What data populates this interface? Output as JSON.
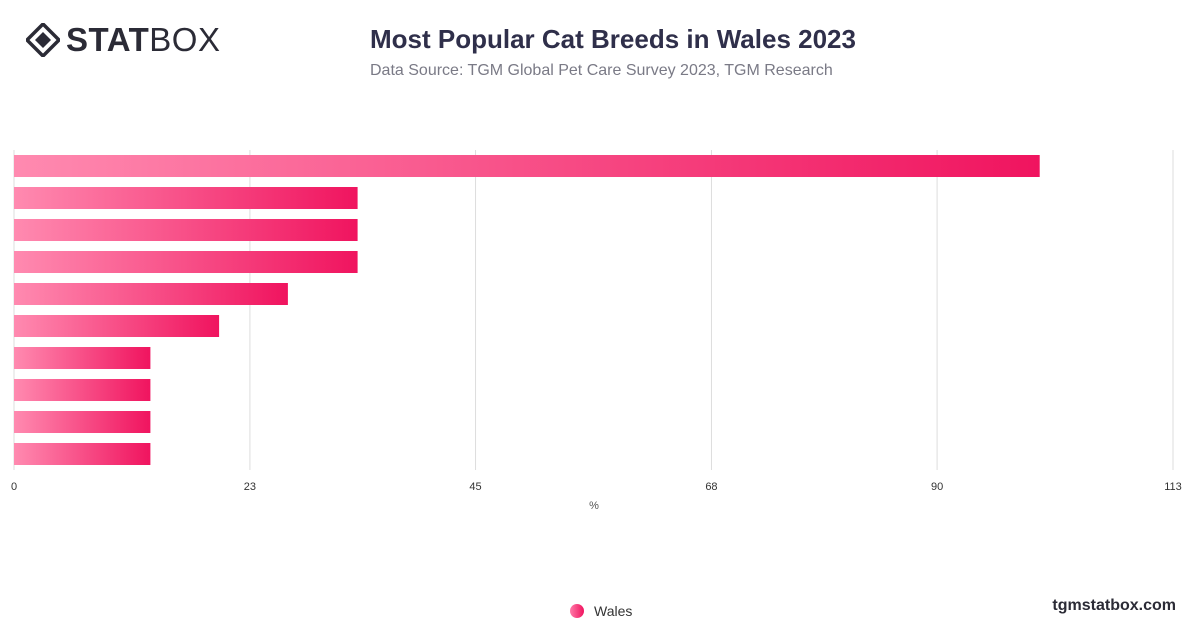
{
  "brand": {
    "logo_bold": "STAT",
    "logo_light": "BOX",
    "icon": "statbox-diamond-icon",
    "watermark": "tgmstatbox.com"
  },
  "header": {
    "title": "Most Popular Cat Breeds in Wales 2023",
    "subtitle": "Data Source: TGM Global Pet Care Survey 2023, TGM Research"
  },
  "legend": {
    "label": "Wales"
  },
  "colors": {
    "bar_start": "#ff8ab0",
    "bar_end": "#f0145f",
    "grid": "#dddddd",
    "axis_text": "#333333"
  },
  "chart_data": {
    "type": "bar",
    "orientation": "horizontal",
    "categories": [
      "",
      "",
      "",
      "",
      "",
      "",
      "",
      "",
      "",
      ""
    ],
    "series": [
      {
        "name": "Wales",
        "values": [
          100,
          33.5,
          33.5,
          33.5,
          26.7,
          20,
          13.3,
          13.3,
          13.3,
          13.3
        ]
      }
    ],
    "xlabel": "%",
    "ylabel": "",
    "xlim": [
      0,
      113
    ],
    "xticks": [
      0,
      23,
      45,
      68,
      90,
      113
    ],
    "grid": true,
    "legend_position": "bottom"
  }
}
